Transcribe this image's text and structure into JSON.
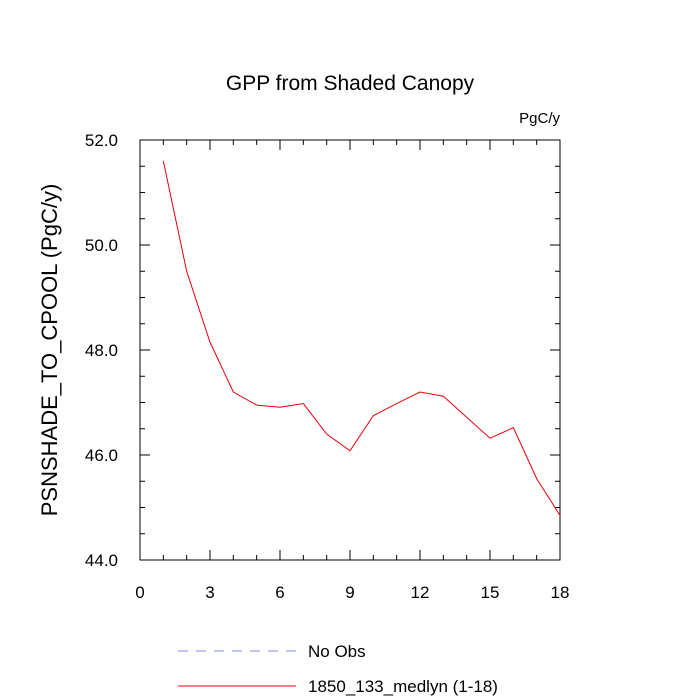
{
  "chart_data": {
    "type": "line",
    "title": "GPP from Shaded Canopy",
    "units_label": "PgC/y",
    "xlabel": "",
    "ylabel": "PSNSHADE_TO_CPOOL  (PgC/y)",
    "xlim": [
      0,
      18
    ],
    "ylim": [
      44.0,
      52.0
    ],
    "x_ticks": [
      0,
      3,
      6,
      9,
      12,
      15,
      18
    ],
    "x_tick_labels": [
      "0",
      "3",
      "6",
      "9",
      "12",
      "15",
      "18"
    ],
    "y_ticks": [
      44.0,
      46.0,
      48.0,
      50.0,
      52.0
    ],
    "y_tick_labels": [
      "44.0",
      "46.0",
      "48.0",
      "50.0",
      "52.0"
    ],
    "grid": false,
    "legend_position": "bottom",
    "series": [
      {
        "name": "No Obs",
        "color": "#8a8ae6",
        "style": "dashed",
        "x": [],
        "y": []
      },
      {
        "name": "1850_133_medlyn (1-18)",
        "color": "#e8000b",
        "style": "solid",
        "x": [
          1,
          2,
          3,
          4,
          5,
          6,
          7,
          8,
          9,
          10,
          11,
          12,
          13,
          14,
          15,
          16,
          17,
          18
        ],
        "y": [
          51.6,
          49.5,
          48.15,
          47.2,
          46.95,
          46.91,
          46.98,
          46.4,
          46.08,
          46.75,
          46.98,
          47.2,
          47.12,
          46.72,
          46.32,
          46.52,
          45.55,
          44.85
        ]
      }
    ]
  }
}
